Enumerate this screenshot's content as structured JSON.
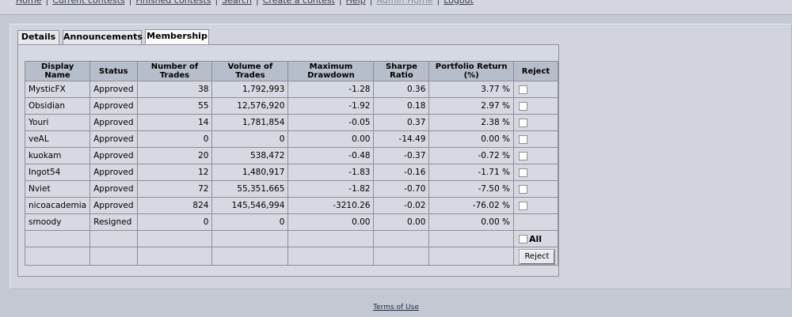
{
  "nav": {
    "links": [
      {
        "label": "Home",
        "disabled": false
      },
      {
        "label": "Current contests",
        "disabled": false
      },
      {
        "label": "Finished contests",
        "disabled": false
      },
      {
        "label": "Search",
        "disabled": false
      },
      {
        "label": "Create a contest",
        "disabled": false
      },
      {
        "label": "Help",
        "disabled": false
      },
      {
        "label": "Admin Home",
        "disabled": true
      },
      {
        "label": "Logout",
        "disabled": false
      }
    ]
  },
  "tabs": [
    {
      "label": "Details",
      "active": false
    },
    {
      "label": "Announcements",
      "active": false
    },
    {
      "label": "Membership",
      "active": true
    }
  ],
  "table": {
    "headers": {
      "display_name": "Display Name",
      "status": "Status",
      "trades": "Number of Trades",
      "volume": "Volume of Trades",
      "drawdown": "Maximum Drawdown",
      "sharpe": "Sharpe Ratio",
      "return": "Portfolio Return (%)",
      "reject": "Reject"
    },
    "rows": [
      {
        "name": "MysticFX",
        "status": "Approved",
        "trades": "38",
        "volume": "1,792,993",
        "drawdown": "-1.28",
        "sharpe": "0.36",
        "ret": "3.77 %",
        "checkbox": true
      },
      {
        "name": "Obsidian",
        "status": "Approved",
        "trades": "55",
        "volume": "12,576,920",
        "drawdown": "-1.92",
        "sharpe": "0.18",
        "ret": "2.97 %",
        "checkbox": true
      },
      {
        "name": "Youri",
        "status": "Approved",
        "trades": "14",
        "volume": "1,781,854",
        "drawdown": "-0.05",
        "sharpe": "0.37",
        "ret": "2.38 %",
        "checkbox": true
      },
      {
        "name": "veAL",
        "status": "Approved",
        "trades": "0",
        "volume": "0",
        "drawdown": "0.00",
        "sharpe": "-14.49",
        "ret": "0.00 %",
        "checkbox": true
      },
      {
        "name": "kuokam",
        "status": "Approved",
        "trades": "20",
        "volume": "538,472",
        "drawdown": "-0.48",
        "sharpe": "-0.37",
        "ret": "-0.72 %",
        "checkbox": true
      },
      {
        "name": "Ingot54",
        "status": "Approved",
        "trades": "12",
        "volume": "1,480,917",
        "drawdown": "-1.83",
        "sharpe": "-0.16",
        "ret": "-1.71 %",
        "checkbox": true
      },
      {
        "name": "Nviet",
        "status": "Approved",
        "trades": "72",
        "volume": "55,351,665",
        "drawdown": "-1.82",
        "sharpe": "-0.70",
        "ret": "-7.50 %",
        "checkbox": true
      },
      {
        "name": "nicoacademia",
        "status": "Approved",
        "trades": "824",
        "volume": "145,546,994",
        "drawdown": "-3210.26",
        "sharpe": "-0.02",
        "ret": "-76.02 %",
        "checkbox": true
      },
      {
        "name": "smoody",
        "status": "Resigned",
        "trades": "0",
        "volume": "0",
        "drawdown": "0.00",
        "sharpe": "0.00",
        "ret": "0.00 %",
        "checkbox": false
      }
    ],
    "all_label": "All",
    "reject_button": "Reject"
  },
  "footer": {
    "terms": "Terms of Use"
  }
}
